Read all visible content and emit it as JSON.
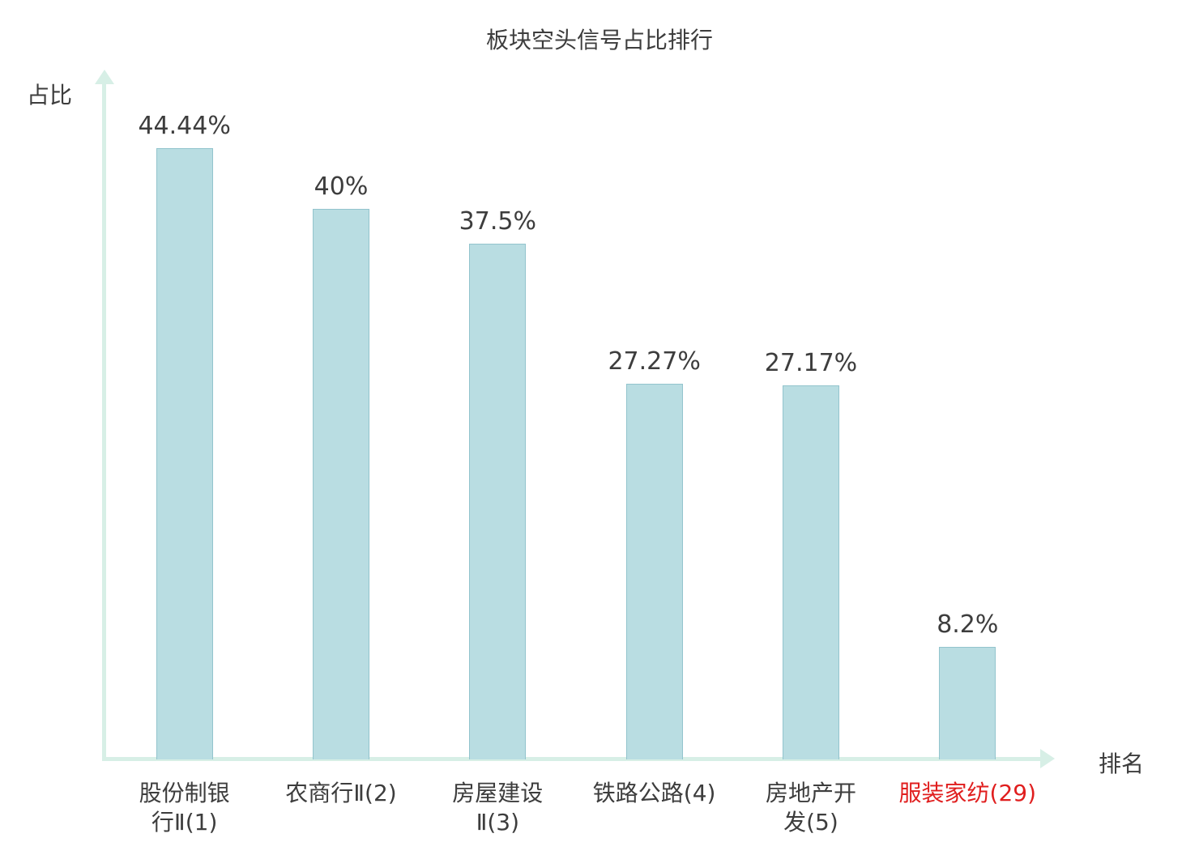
{
  "chart_data": {
    "type": "bar",
    "title": "板块空头信号占比排行",
    "xlabel": "排名",
    "ylabel": "占比",
    "ylim": [
      0,
      50
    ],
    "grid": false,
    "legend": "none",
    "bar_color": "#b9dde2",
    "bar_border_color": "#93c4cd",
    "axis_color": "#d7efe6",
    "label_color": "#3d3d3d",
    "highlight_color": "#e01e1e",
    "categories": [
      {
        "label": "股份制银\n行Ⅱ(1)",
        "value": 44.44,
        "value_label": "44.44%",
        "highlight": false
      },
      {
        "label": "农商行Ⅱ(2)",
        "value": 40,
        "value_label": "40%",
        "highlight": false
      },
      {
        "label": "房屋建设\nⅡ(3)",
        "value": 37.5,
        "value_label": "37.5%",
        "highlight": false
      },
      {
        "label": "铁路公路(4)",
        "value": 27.27,
        "value_label": "27.27%",
        "highlight": false
      },
      {
        "label": "房地产开\n发(5)",
        "value": 27.17,
        "value_label": "27.17%",
        "highlight": false
      },
      {
        "label": "服装家纺(29)",
        "value": 8.2,
        "value_label": "8.2%",
        "highlight": true
      }
    ]
  }
}
